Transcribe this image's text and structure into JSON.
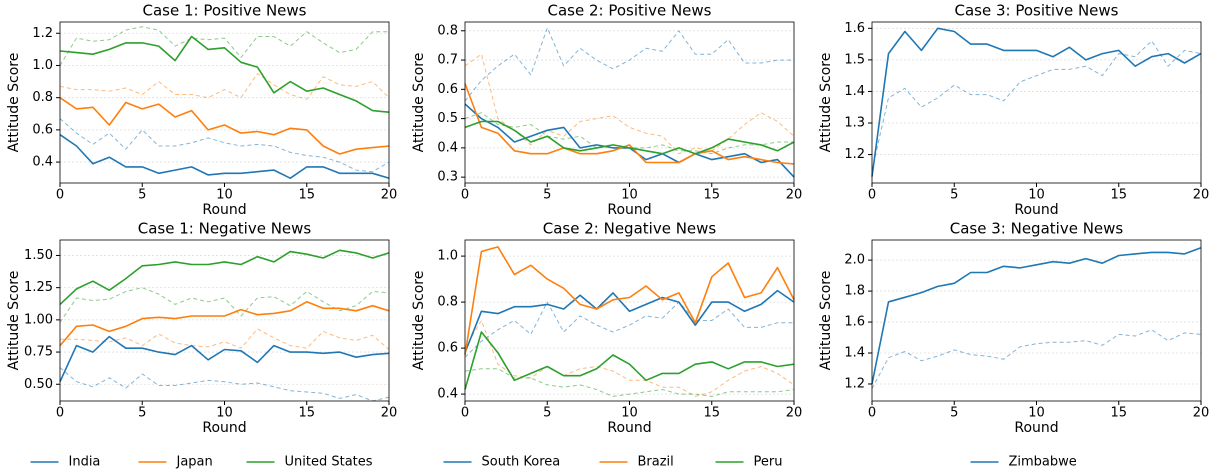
{
  "chart_data": [
    {
      "type": "line",
      "title": "Case 1: Positive News",
      "xlabel": "Round",
      "ylabel": "Attitude Score",
      "grid": true,
      "x": [
        0,
        1,
        2,
        3,
        4,
        5,
        6,
        7,
        8,
        9,
        10,
        11,
        12,
        13,
        14,
        15,
        16,
        17,
        18,
        19,
        20
      ],
      "xlim": [
        0,
        20
      ],
      "xticks": [
        0,
        5,
        10,
        15,
        20
      ],
      "ylim": [
        0.27,
        1.27
      ],
      "yticks": [
        0.4,
        0.6,
        0.8,
        {
          "value": 1,
          "label": "1.0"
        },
        1.2
      ],
      "series": [
        {
          "name": "India",
          "color": "#1f77b4",
          "values": [
            0.57,
            0.5,
            0.39,
            0.43,
            0.37,
            0.37,
            0.33,
            0.35,
            0.37,
            0.32,
            0.33,
            0.33,
            0.34,
            0.35,
            0.3,
            0.37,
            0.37,
            0.33,
            0.33,
            0.33,
            0.3
          ]
        },
        {
          "name": "Japan",
          "color": "#ff7f0e",
          "values": [
            0.8,
            0.73,
            0.74,
            0.63,
            0.77,
            0.73,
            0.76,
            0.68,
            0.72,
            0.6,
            0.63,
            0.58,
            0.59,
            0.57,
            0.61,
            0.6,
            0.5,
            0.45,
            0.48,
            0.49,
            0.5
          ]
        },
        {
          "name": "United States",
          "color": "#2ca02c",
          "values": [
            1.09,
            1.08,
            1.07,
            1.1,
            1.14,
            1.14,
            1.12,
            1.03,
            1.18,
            1.1,
            1.11,
            1.02,
            0.99,
            0.83,
            0.9,
            0.84,
            0.86,
            0.82,
            0.78,
            0.72,
            0.71
          ]
        },
        {
          "color": "#1f77b4",
          "linestyle": "dashed",
          "values": [
            0.67,
            0.58,
            0.51,
            0.58,
            0.48,
            0.6,
            0.5,
            0.5,
            0.52,
            0.55,
            0.52,
            0.5,
            0.51,
            0.5,
            0.46,
            0.44,
            0.43,
            0.4,
            0.35,
            0.34,
            0.4
          ]
        },
        {
          "color": "#ff7f0e",
          "linestyle": "dashed",
          "values": [
            0.87,
            0.85,
            0.85,
            0.84,
            0.86,
            0.82,
            0.9,
            0.82,
            0.82,
            0.8,
            0.85,
            0.8,
            0.95,
            0.88,
            0.82,
            0.79,
            0.93,
            0.88,
            0.87,
            0.9,
            0.8
          ]
        },
        {
          "color": "#2ca02c",
          "linestyle": "dashed",
          "values": [
            1.0,
            1.17,
            1.15,
            1.16,
            1.22,
            1.24,
            1.22,
            1.12,
            1.17,
            1.16,
            1.17,
            1.05,
            1.18,
            1.18,
            1.12,
            1.21,
            1.14,
            1.08,
            1.1,
            1.21,
            1.21
          ]
        }
      ]
    },
    {
      "type": "line",
      "title": "Case 2: Positive News",
      "xlabel": "Round",
      "ylabel": "Attitude Score",
      "grid": true,
      "x": [
        0,
        1,
        2,
        3,
        4,
        5,
        6,
        7,
        8,
        9,
        10,
        11,
        12,
        13,
        14,
        15,
        16,
        17,
        18,
        19,
        20
      ],
      "xlim": [
        0,
        20
      ],
      "xticks": [
        0,
        5,
        10,
        15,
        20
      ],
      "ylim": [
        0.28,
        0.83
      ],
      "yticks": [
        0.3,
        0.4,
        0.5,
        0.6,
        0.7,
        0.8
      ],
      "series": [
        {
          "name": "South Korea",
          "color": "#1f77b4",
          "values": [
            0.55,
            0.5,
            0.47,
            0.42,
            0.44,
            0.46,
            0.47,
            0.4,
            0.41,
            0.4,
            0.4,
            0.36,
            0.38,
            0.35,
            0.38,
            0.36,
            0.37,
            0.38,
            0.35,
            0.36,
            0.3
          ]
        },
        {
          "name": "Brazil",
          "color": "#ff7f0e",
          "values": [
            0.62,
            0.47,
            0.45,
            0.39,
            0.38,
            0.38,
            0.4,
            0.38,
            0.38,
            0.39,
            0.41,
            0.35,
            0.35,
            0.35,
            0.38,
            0.39,
            0.36,
            0.37,
            0.36,
            0.35,
            0.345
          ]
        },
        {
          "name": "Peru",
          "color": "#2ca02c",
          "values": [
            0.47,
            0.49,
            0.49,
            0.46,
            0.42,
            0.44,
            0.4,
            0.39,
            0.4,
            0.41,
            0.4,
            0.39,
            0.38,
            0.4,
            0.38,
            0.4,
            0.43,
            0.42,
            0.41,
            0.39,
            0.42
          ]
        },
        {
          "color": "#1f77b4",
          "linestyle": "dashed",
          "values": [
            0.56,
            0.63,
            0.68,
            0.72,
            0.65,
            0.81,
            0.68,
            0.74,
            0.7,
            0.67,
            0.7,
            0.74,
            0.73,
            0.8,
            0.72,
            0.72,
            0.77,
            0.69,
            0.69,
            0.7,
            0.7
          ]
        },
        {
          "color": "#ff7f0e",
          "linestyle": "dashed",
          "values": [
            0.68,
            0.72,
            0.5,
            0.46,
            0.41,
            0.46,
            0.44,
            0.49,
            0.5,
            0.51,
            0.47,
            0.45,
            0.44,
            0.38,
            0.4,
            0.39,
            0.43,
            0.48,
            0.52,
            0.49,
            0.44
          ]
        },
        {
          "color": "#2ca02c",
          "linestyle": "dashed",
          "values": [
            0.5,
            0.52,
            0.48,
            0.47,
            0.48,
            0.44,
            0.43,
            0.44,
            0.4,
            0.41,
            0.4,
            0.4,
            0.41,
            0.39,
            0.39,
            0.38,
            0.4,
            0.41,
            0.41,
            0.42,
            0.42
          ]
        }
      ]
    },
    {
      "type": "line",
      "title": "Case 3: Positive News",
      "xlabel": "Round",
      "ylabel": "Attitude Score",
      "grid": true,
      "x": [
        0,
        1,
        2,
        3,
        4,
        5,
        6,
        7,
        8,
        9,
        10,
        11,
        12,
        13,
        14,
        15,
        16,
        17,
        18,
        19,
        20
      ],
      "xlim": [
        0,
        20
      ],
      "xticks": [
        0,
        5,
        10,
        15,
        20
      ],
      "ylim": [
        1.11,
        1.62
      ],
      "yticks": [
        1.2,
        1.3,
        1.4,
        1.5,
        1.6
      ],
      "series": [
        {
          "name": "Zimbabwe",
          "color": "#1f77b4",
          "values": [
            1.13,
            1.52,
            1.59,
            1.53,
            1.6,
            1.59,
            1.55,
            1.55,
            1.53,
            1.53,
            1.53,
            1.51,
            1.54,
            1.5,
            1.52,
            1.53,
            1.48,
            1.51,
            1.52,
            1.49,
            1.52
          ]
        },
        {
          "color": "#1f77b4",
          "linestyle": "dashed",
          "values": [
            1.15,
            1.38,
            1.41,
            1.35,
            1.38,
            1.42,
            1.39,
            1.39,
            1.37,
            1.43,
            1.45,
            1.47,
            1.47,
            1.48,
            1.45,
            1.52,
            1.51,
            1.56,
            1.48,
            1.53,
            1.52
          ]
        }
      ]
    },
    {
      "type": "line",
      "title": "Case 1: Negative News",
      "xlabel": "Round",
      "ylabel": "Attitude Score",
      "grid": true,
      "x": [
        0,
        1,
        2,
        3,
        4,
        5,
        6,
        7,
        8,
        9,
        10,
        11,
        12,
        13,
        14,
        15,
        16,
        17,
        18,
        19,
        20
      ],
      "xlim": [
        0,
        20
      ],
      "xticks": [
        0,
        5,
        10,
        15,
        20
      ],
      "ylim": [
        0.37,
        1.62
      ],
      "yticks": [
        {
          "value": 0.5,
          "label": "0.50"
        },
        0.75,
        {
          "value": 1,
          "label": "1.00"
        },
        1.25,
        {
          "value": 1.5,
          "label": "1.50"
        }
      ],
      "series": [
        {
          "color": "#1f77b4",
          "values": [
            0.52,
            0.8,
            0.75,
            0.87,
            0.78,
            0.78,
            0.75,
            0.73,
            0.8,
            0.69,
            0.77,
            0.76,
            0.67,
            0.8,
            0.75,
            0.75,
            0.74,
            0.75,
            0.71,
            0.73,
            0.74
          ]
        },
        {
          "color": "#ff7f0e",
          "values": [
            0.8,
            0.95,
            0.96,
            0.91,
            0.95,
            1.01,
            1.02,
            1.01,
            1.03,
            1.03,
            1.03,
            1.08,
            1.04,
            1.05,
            1.07,
            1.14,
            1.09,
            1.09,
            1.07,
            1.11,
            1.07
          ]
        },
        {
          "color": "#2ca02c",
          "values": [
            1.12,
            1.24,
            1.3,
            1.23,
            1.32,
            1.42,
            1.43,
            1.45,
            1.43,
            1.43,
            1.45,
            1.43,
            1.49,
            1.45,
            1.53,
            1.51,
            1.48,
            1.54,
            1.52,
            1.48,
            1.52
          ]
        },
        {
          "color": "#1f77b4",
          "linestyle": "dashed",
          "values": [
            0.63,
            0.52,
            0.48,
            0.55,
            0.47,
            0.58,
            0.49,
            0.49,
            0.51,
            0.53,
            0.52,
            0.5,
            0.51,
            0.48,
            0.45,
            0.44,
            0.43,
            0.39,
            0.42,
            0.37,
            0.4
          ]
        },
        {
          "color": "#ff7f0e",
          "linestyle": "dashed",
          "values": [
            0.85,
            0.85,
            0.84,
            0.83,
            0.86,
            0.8,
            0.89,
            0.82,
            0.8,
            0.79,
            0.83,
            0.78,
            0.93,
            0.86,
            0.8,
            0.78,
            0.91,
            0.86,
            0.84,
            0.88,
            0.77
          ]
        },
        {
          "color": "#2ca02c",
          "linestyle": "dashed",
          "values": [
            0.98,
            1.17,
            1.15,
            1.16,
            1.22,
            1.25,
            1.2,
            1.12,
            1.17,
            1.14,
            1.17,
            1.03,
            1.17,
            1.18,
            1.11,
            1.22,
            1.14,
            1.07,
            1.11,
            1.22,
            1.21
          ]
        }
      ]
    },
    {
      "type": "line",
      "title": "Case 2: Negative News",
      "xlabel": "Round",
      "ylabel": "Attitude Score",
      "grid": true,
      "x": [
        0,
        1,
        2,
        3,
        4,
        5,
        6,
        7,
        8,
        9,
        10,
        11,
        12,
        13,
        14,
        15,
        16,
        17,
        18,
        19,
        20
      ],
      "xlim": [
        0,
        20
      ],
      "xticks": [
        0,
        5,
        10,
        15,
        20
      ],
      "ylim": [
        0.37,
        1.07
      ],
      "yticks": [
        0.4,
        0.6,
        0.8,
        {
          "value": 1,
          "label": "1.0"
        }
      ],
      "series": [
        {
          "color": "#1f77b4",
          "values": [
            0.58,
            0.76,
            0.75,
            0.78,
            0.78,
            0.79,
            0.77,
            0.83,
            0.77,
            0.84,
            0.76,
            0.79,
            0.82,
            0.8,
            0.7,
            0.8,
            0.8,
            0.76,
            0.79,
            0.85,
            0.8
          ]
        },
        {
          "color": "#ff7f0e",
          "values": [
            0.57,
            1.02,
            1.04,
            0.92,
            0.96,
            0.9,
            0.86,
            0.79,
            0.77,
            0.81,
            0.82,
            0.87,
            0.81,
            0.84,
            0.71,
            0.91,
            0.97,
            0.82,
            0.84,
            0.95,
            0.81
          ]
        },
        {
          "color": "#2ca02c",
          "values": [
            0.42,
            0.67,
            0.58,
            0.46,
            0.49,
            0.52,
            0.48,
            0.48,
            0.51,
            0.57,
            0.53,
            0.46,
            0.49,
            0.49,
            0.53,
            0.54,
            0.51,
            0.54,
            0.54,
            0.52,
            0.53
          ]
        },
        {
          "color": "#1f77b4",
          "linestyle": "dashed",
          "values": [
            0.56,
            0.63,
            0.68,
            0.72,
            0.66,
            0.8,
            0.67,
            0.74,
            0.7,
            0.67,
            0.7,
            0.74,
            0.73,
            0.8,
            0.72,
            0.72,
            0.77,
            0.69,
            0.69,
            0.71,
            0.71
          ]
        },
        {
          "color": "#ff7f0e",
          "linestyle": "dashed",
          "values": [
            0.6,
            0.72,
            0.53,
            0.48,
            0.47,
            0.52,
            0.48,
            0.51,
            0.52,
            0.5,
            0.46,
            0.46,
            0.43,
            0.43,
            0.39,
            0.41,
            0.46,
            0.5,
            0.52,
            0.49,
            0.44
          ]
        },
        {
          "color": "#2ca02c",
          "linestyle": "dashed",
          "values": [
            0.5,
            0.51,
            0.51,
            0.47,
            0.47,
            0.44,
            0.43,
            0.44,
            0.42,
            0.39,
            0.4,
            0.41,
            0.42,
            0.4,
            0.4,
            0.39,
            0.41,
            0.41,
            0.41,
            0.41,
            0.42
          ]
        }
      ]
    },
    {
      "type": "line",
      "title": "Case 3: Negative News",
      "xlabel": "Round",
      "ylabel": "Attitude Score",
      "grid": true,
      "x": [
        0,
        1,
        2,
        3,
        4,
        5,
        6,
        7,
        8,
        9,
        10,
        11,
        12,
        13,
        14,
        15,
        16,
        17,
        18,
        19,
        20
      ],
      "xlim": [
        0,
        20
      ],
      "xticks": [
        0,
        5,
        10,
        15,
        20
      ],
      "ylim": [
        1.09,
        2.13
      ],
      "yticks": [
        1.2,
        1.4,
        1.6,
        1.8,
        {
          "value": 2,
          "label": "2.0"
        }
      ],
      "series": [
        {
          "color": "#1f77b4",
          "values": [
            1.2,
            1.73,
            1.76,
            1.79,
            1.83,
            1.85,
            1.92,
            1.92,
            1.96,
            1.95,
            1.97,
            1.99,
            1.98,
            2.01,
            1.98,
            2.03,
            2.04,
            2.05,
            2.05,
            2.04,
            2.08
          ]
        },
        {
          "color": "#1f77b4",
          "linestyle": "dashed",
          "values": [
            1.17,
            1.37,
            1.41,
            1.35,
            1.38,
            1.42,
            1.39,
            1.38,
            1.36,
            1.44,
            1.46,
            1.47,
            1.47,
            1.48,
            1.45,
            1.52,
            1.51,
            1.55,
            1.48,
            1.53,
            1.52
          ]
        }
      ]
    }
  ]
}
